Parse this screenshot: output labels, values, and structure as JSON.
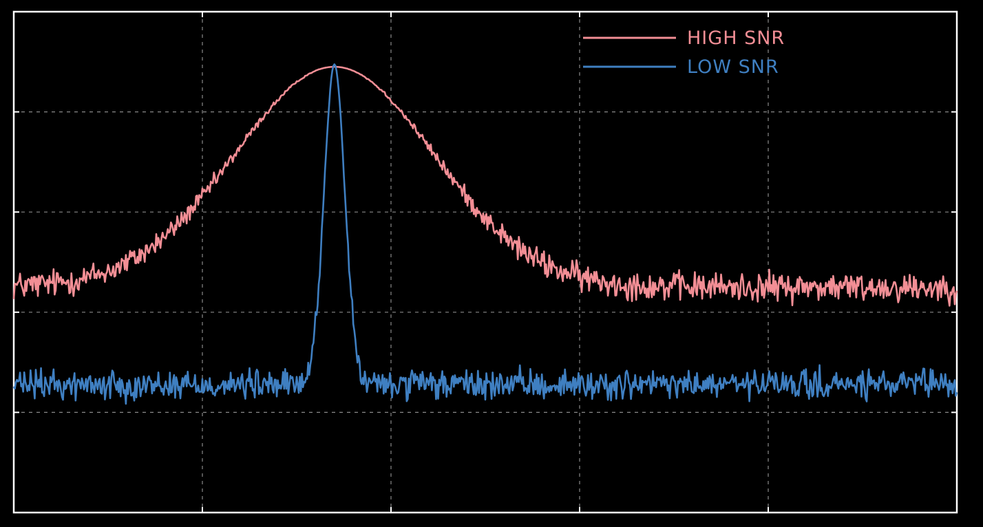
{
  "chart_data": {
    "type": "line",
    "title": "",
    "xlabel": "",
    "ylabel": "",
    "xlim": [
      0,
      10
    ],
    "ylim": [
      0,
      10
    ],
    "grid": true,
    "legend_position": "top-right",
    "xticks": [
      2,
      4,
      6,
      8
    ],
    "yticks": [
      2,
      4,
      6,
      8
    ],
    "series": [
      {
        "name": "HIGH SNR",
        "color": "#f28e95",
        "shape": "broad gaussian peak over noisy baseline",
        "baseline": 4.5,
        "noise_amplitude": 0.22,
        "peak_center": 3.4,
        "peak_value": 8.9,
        "peak_width": 1.05
      },
      {
        "name": "LOW SNR",
        "color": "#3f7fc1",
        "shape": "narrow spike over noisy baseline",
        "baseline": 2.55,
        "noise_amplitude": 0.22,
        "peak_center": 3.4,
        "peak_value": 8.95,
        "peak_width": 0.11
      }
    ]
  },
  "colors": {
    "background": "#000000",
    "frame": "#ffffff",
    "grid": "#8a8a8a"
  }
}
